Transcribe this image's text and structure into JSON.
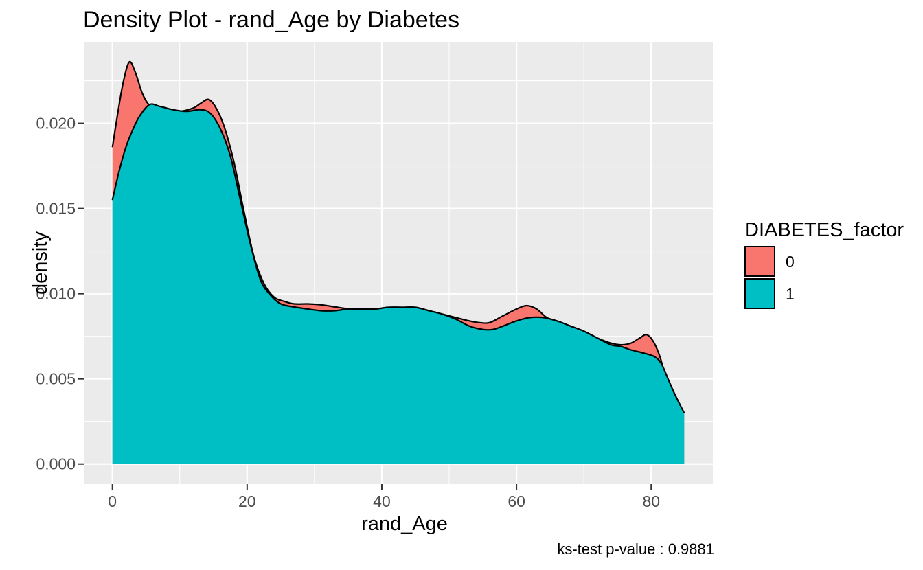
{
  "chart_data": {
    "type": "area",
    "title": "Density Plot - rand_Age by Diabetes",
    "xlabel": "rand_Age",
    "ylabel": "density",
    "caption": "ks-test p-value : 0.9881",
    "panel_bg": "#EBEBEB",
    "grid_color": "#FFFFFF",
    "axis_text_color": "#4D4D4D",
    "tick_mark_color": "#333333",
    "outline_color": "#000000",
    "grid": true,
    "legend_position": "right",
    "xlim": [
      -4.25,
      89.15
    ],
    "ylim": [
      -0.00118,
      0.02478
    ],
    "x_ticks": [
      {
        "value": 0,
        "label": "0"
      },
      {
        "value": 20,
        "label": "20"
      },
      {
        "value": 40,
        "label": "40"
      },
      {
        "value": 60,
        "label": "60"
      },
      {
        "value": 80,
        "label": "80"
      }
    ],
    "y_ticks": [
      {
        "value": 0.0,
        "label": "0.000"
      },
      {
        "value": 0.005,
        "label": "0.005"
      },
      {
        "value": 0.01,
        "label": "0.010"
      },
      {
        "value": 0.015,
        "label": "0.015"
      },
      {
        "value": 0.02,
        "label": "0.020"
      }
    ],
    "x_minor": [
      10,
      30,
      50,
      70
    ],
    "y_minor": [
      0.0025,
      0.0075,
      0.0125,
      0.0175,
      0.0225
    ],
    "legend": {
      "title": "DIABETES_factor",
      "entries": [
        {
          "label": "0",
          "color": "#F8766D"
        },
        {
          "label": "1",
          "color": "#00BFC4"
        }
      ]
    },
    "series": [
      {
        "name": "0",
        "color": "#F8766D",
        "points": [
          [
            0,
            0.0186
          ],
          [
            0.8,
            0.0206
          ],
          [
            1.6,
            0.0224
          ],
          [
            2.5,
            0.0236
          ],
          [
            3.4,
            0.023
          ],
          [
            4.4,
            0.0218
          ],
          [
            5.4,
            0.0211
          ],
          [
            6.5,
            0.0208
          ],
          [
            8,
            0.0207
          ],
          [
            10,
            0.0207
          ],
          [
            12,
            0.0209
          ],
          [
            13.2,
            0.0212
          ],
          [
            14.3,
            0.0214
          ],
          [
            15.4,
            0.0209
          ],
          [
            16.6,
            0.0198
          ],
          [
            18,
            0.0178
          ],
          [
            19.5,
            0.0149
          ],
          [
            21,
            0.0122
          ],
          [
            22.5,
            0.0106
          ],
          [
            24,
            0.0098
          ],
          [
            25.5,
            0.00955
          ],
          [
            27,
            0.0094
          ],
          [
            29,
            0.0094
          ],
          [
            31,
            0.00935
          ],
          [
            33,
            0.00923
          ],
          [
            35,
            0.00912
          ],
          [
            37,
            0.0091
          ],
          [
            39,
            0.0091
          ],
          [
            41,
            0.0092
          ],
          [
            43,
            0.0092
          ],
          [
            45,
            0.0092
          ],
          [
            47,
            0.009
          ],
          [
            49,
            0.0088
          ],
          [
            51,
            0.0086
          ],
          [
            53,
            0.0084
          ],
          [
            54.5,
            0.0083
          ],
          [
            56,
            0.0083
          ],
          [
            58,
            0.0087
          ],
          [
            60,
            0.0091
          ],
          [
            61.5,
            0.0093
          ],
          [
            63,
            0.0091
          ],
          [
            64.5,
            0.0086
          ],
          [
            66,
            0.0084
          ],
          [
            68,
            0.0081
          ],
          [
            70,
            0.0078
          ],
          [
            72,
            0.0074
          ],
          [
            74,
            0.0071
          ],
          [
            75.5,
            0.007
          ],
          [
            77,
            0.0071
          ],
          [
            78.3,
            0.0074
          ],
          [
            79.3,
            0.0076
          ],
          [
            80.3,
            0.0072
          ],
          [
            81.3,
            0.0063
          ],
          [
            82.3,
            0.0049
          ],
          [
            83.5,
            0.004
          ],
          [
            84.9,
            0.003
          ]
        ]
      },
      {
        "name": "1",
        "color": "#00BFC4",
        "points": [
          [
            0,
            0.0155
          ],
          [
            1,
            0.0172
          ],
          [
            2,
            0.0186
          ],
          [
            3,
            0.0196
          ],
          [
            4,
            0.0204
          ],
          [
            5.5,
            0.0211
          ],
          [
            7,
            0.021
          ],
          [
            9,
            0.0208
          ],
          [
            11,
            0.0207
          ],
          [
            13,
            0.0208
          ],
          [
            14.5,
            0.0206
          ],
          [
            16,
            0.0197
          ],
          [
            17.5,
            0.0181
          ],
          [
            19,
            0.0155
          ],
          [
            20.5,
            0.0129
          ],
          [
            22,
            0.0108
          ],
          [
            23.5,
            0.0099
          ],
          [
            25,
            0.0094
          ],
          [
            27,
            0.00922
          ],
          [
            29,
            0.0091
          ],
          [
            31,
            0.009
          ],
          [
            33,
            0.009
          ],
          [
            35,
            0.0091
          ],
          [
            37,
            0.0091
          ],
          [
            39,
            0.0091
          ],
          [
            41,
            0.0092
          ],
          [
            43,
            0.0092
          ],
          [
            45,
            0.0092
          ],
          [
            47,
            0.009
          ],
          [
            49,
            0.0088
          ],
          [
            51,
            0.0085
          ],
          [
            53,
            0.0081
          ],
          [
            55,
            0.0079
          ],
          [
            56.5,
            0.0079
          ],
          [
            58,
            0.0081
          ],
          [
            60,
            0.0084
          ],
          [
            62,
            0.0086
          ],
          [
            64,
            0.0086
          ],
          [
            66,
            0.0084
          ],
          [
            68,
            0.0081
          ],
          [
            70,
            0.0078
          ],
          [
            72,
            0.0074
          ],
          [
            74,
            0.007
          ],
          [
            75.5,
            0.0069
          ],
          [
            77,
            0.0067
          ],
          [
            79,
            0.0065
          ],
          [
            80.5,
            0.0063
          ],
          [
            81.5,
            0.0059
          ],
          [
            82.5,
            0.005
          ],
          [
            83.5,
            0.0041
          ],
          [
            84.9,
            0.003
          ]
        ]
      }
    ]
  }
}
